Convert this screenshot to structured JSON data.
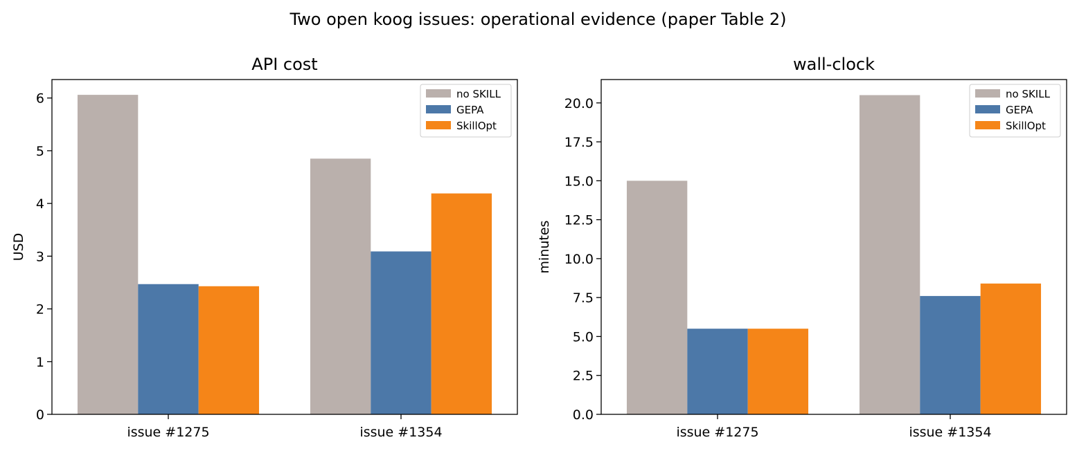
{
  "figure": {
    "title": "Two open koog issues: operational evidence (paper Table 2)"
  },
  "chart_data": [
    {
      "type": "bar",
      "title": "API cost",
      "xlabel": "",
      "ylabel": "USD",
      "categories": [
        "issue #1275",
        "issue #1354"
      ],
      "ylim": [
        0,
        6.35
      ],
      "yticks": [
        0,
        1,
        2,
        3,
        4,
        5,
        6
      ],
      "ytick_labels": [
        "0",
        "1",
        "2",
        "3",
        "4",
        "5",
        "6"
      ],
      "legend": "top-right",
      "grid": false,
      "series": [
        {
          "name": "no SKILL",
          "color": "#bab0ac",
          "values": [
            6.06,
            4.85
          ]
        },
        {
          "name": "GEPA",
          "color": "#4c78a8",
          "values": [
            2.47,
            3.09
          ]
        },
        {
          "name": "SkillOpt",
          "color": "#f58518",
          "values": [
            2.43,
            4.19
          ]
        }
      ]
    },
    {
      "type": "bar",
      "title": "wall-clock",
      "xlabel": "",
      "ylabel": "minutes",
      "categories": [
        "issue #1275",
        "issue #1354"
      ],
      "ylim": [
        0,
        21.5
      ],
      "yticks": [
        0,
        2.5,
        5,
        7.5,
        10,
        12.5,
        15,
        17.5,
        20
      ],
      "ytick_labels": [
        "0.0",
        "2.5",
        "5.0",
        "7.5",
        "10.0",
        "12.5",
        "15.0",
        "17.5",
        "20.0"
      ],
      "legend": "top-right",
      "grid": false,
      "series": [
        {
          "name": "no SKILL",
          "color": "#bab0ac",
          "values": [
            15.0,
            20.5
          ]
        },
        {
          "name": "GEPA",
          "color": "#4c78a8",
          "values": [
            5.5,
            7.6
          ]
        },
        {
          "name": "SkillOpt",
          "color": "#f58518",
          "values": [
            5.5,
            8.4
          ]
        }
      ]
    }
  ]
}
